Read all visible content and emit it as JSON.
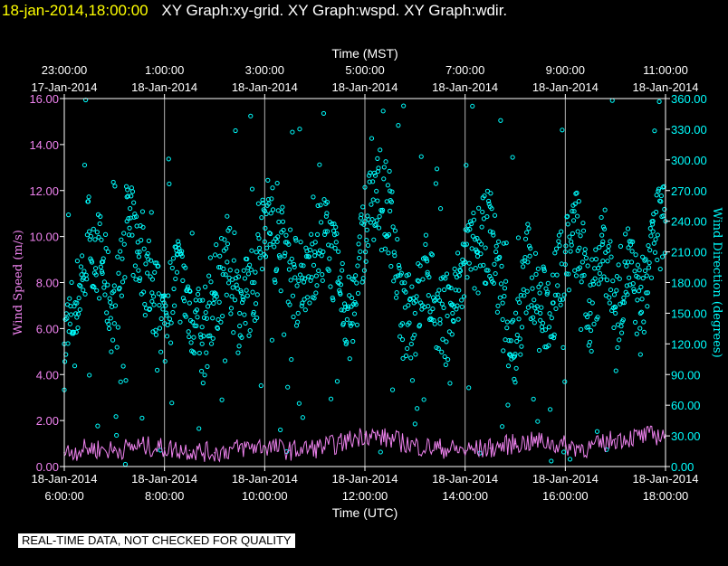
{
  "header": {
    "datetime": "18-jan-2014,18:00:00",
    "graphs": [
      "XY Graph:xy-grid.",
      "XY Graph:wspd.",
      "XY Graph:wdir."
    ]
  },
  "disclaimer": "REAL-TIME DATA, NOT CHECKED FOR QUALITY",
  "colors": {
    "background": "#000000",
    "axes": "#ffffff",
    "wind_speed": "#ee82ee",
    "wind_direction": "#00ffff",
    "header_date": "#ffff00"
  },
  "chart_data": {
    "type": "scatter",
    "top_axis": {
      "label": "Time (MST)",
      "ticks": [
        {
          "time": "23:00:00",
          "date": "17-Jan-2014"
        },
        {
          "time": "1:00:00",
          "date": "18-Jan-2014"
        },
        {
          "time": "3:00:00",
          "date": "18-Jan-2014"
        },
        {
          "time": "5:00:00",
          "date": "18-Jan-2014"
        },
        {
          "time": "7:00:00",
          "date": "18-Jan-2014"
        },
        {
          "time": "9:00:00",
          "date": "18-Jan-2014"
        },
        {
          "time": "11:00:00",
          "date": "18-Jan-2014"
        }
      ]
    },
    "bottom_axis": {
      "label": "Time (UTC)",
      "range": [
        "18-Jan-2014 6:00:00",
        "18-Jan-2014 18:00:00"
      ],
      "ticks": [
        {
          "date": "18-Jan-2014",
          "time": "6:00:00"
        },
        {
          "date": "18-Jan-2014",
          "time": "8:00:00"
        },
        {
          "date": "18-Jan-2014",
          "time": "10:00:00"
        },
        {
          "date": "18-Jan-2014",
          "time": "12:00:00"
        },
        {
          "date": "18-Jan-2014",
          "time": "14:00:00"
        },
        {
          "date": "18-Jan-2014",
          "time": "16:00:00"
        },
        {
          "date": "18-Jan-2014",
          "time": "18:00:00"
        }
      ]
    },
    "left_axis": {
      "label": "Wind Speed (m/s)",
      "range": [
        0,
        16
      ],
      "ticks": [
        "0.00",
        "2.00",
        "4.00",
        "6.00",
        "8.00",
        "10.00",
        "12.00",
        "14.00",
        "16.00"
      ]
    },
    "right_axis": {
      "label": "Wind Direction (degrees)",
      "range": [
        0,
        360
      ],
      "ticks": [
        "0.00",
        "30.00",
        "60.00",
        "90.00",
        "120.00",
        "150.00",
        "180.00",
        "210.00",
        "240.00",
        "270.00",
        "300.00",
        "330.00",
        "360.00"
      ]
    },
    "grid": "vertical lines at labeled time ticks",
    "series": [
      {
        "key": "wspd",
        "style": "line",
        "axis": "left",
        "hours": [
          6,
          6.5,
          7,
          7.5,
          8,
          8.5,
          9,
          9.5,
          10,
          10.5,
          11,
          11.5,
          12,
          12.5,
          13,
          13.5,
          14,
          14.5,
          15,
          15.5,
          16,
          16.5,
          17,
          17.5,
          18
        ],
        "values": [
          0.6,
          0.8,
          0.7,
          0.9,
          0.8,
          0.7,
          0.6,
          0.8,
          0.9,
          0.7,
          0.8,
          1.0,
          1.4,
          1.2,
          0.9,
          0.8,
          0.7,
          0.8,
          1.0,
          1.1,
          0.9,
          0.8,
          1.2,
          1.3,
          1.4
        ]
      },
      {
        "key": "wdir",
        "style": "circles",
        "axis": "right",
        "hours": [
          6,
          6.25,
          6.5,
          6.75,
          7,
          7.25,
          7.5,
          7.75,
          8,
          8.25,
          8.5,
          8.75,
          9,
          9.25,
          9.5,
          9.75,
          10,
          10.25,
          10.5,
          10.75,
          11,
          11.25,
          11.5,
          11.75,
          12,
          12.25,
          12.5,
          12.75,
          13,
          13.25,
          13.5,
          13.75,
          14,
          14.25,
          14.5,
          14.75,
          15,
          15.25,
          15.5,
          15.75,
          16,
          16.25,
          16.5,
          16.75,
          17,
          17.25,
          17.5,
          17.75,
          18
        ],
        "values": [
          120,
          160,
          230,
          200,
          140,
          240,
          210,
          170,
          140,
          190,
          160,
          120,
          170,
          200,
          150,
          180,
          250,
          220,
          200,
          160,
          210,
          230,
          170,
          140,
          240,
          260,
          250,
          140,
          150,
          190,
          140,
          150,
          200,
          210,
          230,
          160,
          110,
          200,
          150,
          160,
          210,
          230,
          150,
          220,
          150,
          200,
          150,
          230,
          240
        ]
      }
    ]
  }
}
